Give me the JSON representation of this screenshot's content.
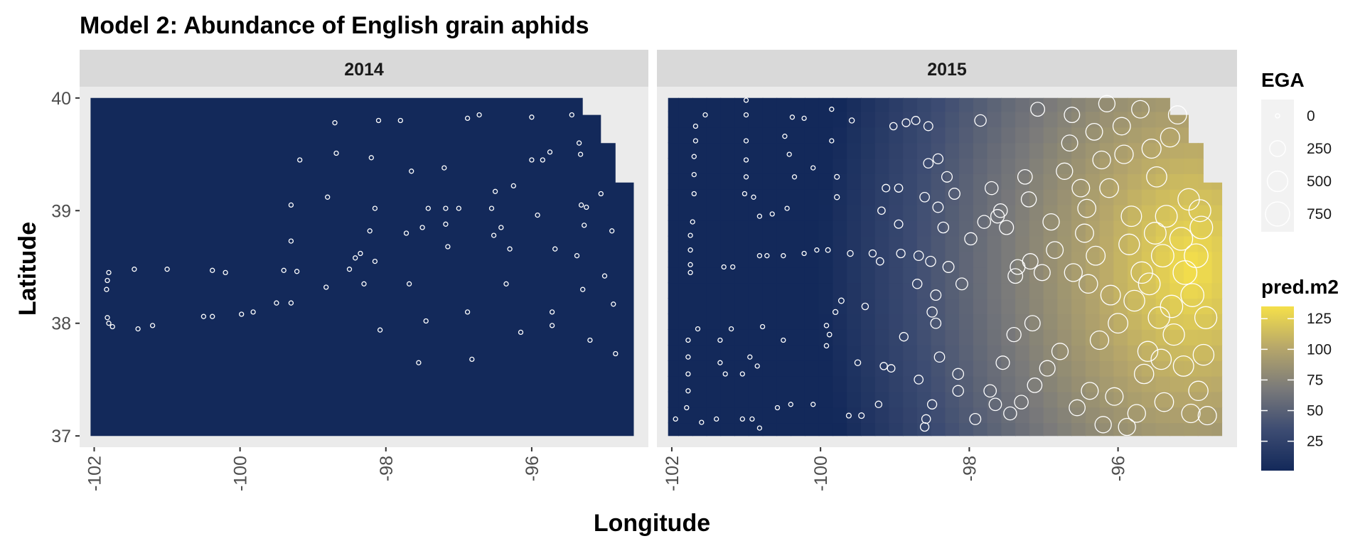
{
  "chart_data": {
    "type": "heatmap",
    "title": "Model 2: Abundance of English grain aphids",
    "xlabel": "Longitude",
    "ylabel": "Latitude",
    "facet_labels": [
      "2014",
      "2015"
    ],
    "xlim": [
      -102.2,
      -94.4
    ],
    "ylim": [
      36.9,
      40.1
    ],
    "x_ticks": [
      -102,
      -100,
      -98,
      -96
    ],
    "x_tick_labels": [
      "-102",
      "-100",
      "-98",
      "-96"
    ],
    "y_ticks": [
      37,
      38,
      39,
      40
    ],
    "y_tick_labels": [
      "37",
      "38",
      "39",
      "40"
    ],
    "grid": false,
    "legend_position": "right",
    "size_legend": {
      "title": "EGA",
      "breaks": [
        0,
        250,
        500,
        750
      ],
      "labels": [
        "0",
        "250",
        "500",
        "750"
      ]
    },
    "fill_legend": {
      "title": "pred.m2",
      "breaks": [
        25,
        50,
        75,
        100,
        125
      ],
      "labels": [
        "25",
        "50",
        "75",
        "100",
        "125"
      ],
      "range": [
        1,
        135
      ],
      "colors": [
        "#13295a",
        "#3d4c72",
        "#7a7a7a",
        "#b7a76a",
        "#f5e04a"
      ]
    },
    "colors": {
      "panel_background": "#ebebeb",
      "strip_background": "#d9d9d9",
      "low_fill": "#13295a",
      "point_stroke": "#ffffff"
    },
    "region_boundary": [
      [
        -102.05,
        37.0
      ],
      [
        -102.05,
        40.0
      ],
      [
        -95.3,
        40.0
      ],
      [
        -95.3,
        39.85
      ],
      [
        -95.05,
        39.85
      ],
      [
        -95.05,
        39.6
      ],
      [
        -94.85,
        39.6
      ],
      [
        -94.85,
        39.25
      ],
      [
        -94.6,
        39.25
      ],
      [
        -94.6,
        37.0
      ]
    ],
    "panels": [
      {
        "label": "2014",
        "prediction_surface": "uniform",
        "points": [
          [
            -101.8,
            38.45
          ],
          [
            -101.82,
            38.38
          ],
          [
            -101.83,
            38.3
          ],
          [
            -101.82,
            38.05
          ],
          [
            -101.8,
            38.0
          ],
          [
            -101.75,
            37.97
          ],
          [
            -101.45,
            38.48
          ],
          [
            -101.4,
            37.95
          ],
          [
            -101.2,
            37.98
          ],
          [
            -101.0,
            38.48
          ],
          [
            -100.5,
            38.06
          ],
          [
            -100.38,
            38.06
          ],
          [
            -100.38,
            38.47
          ],
          [
            -100.2,
            38.45
          ],
          [
            -99.98,
            38.08
          ],
          [
            -99.82,
            38.1
          ],
          [
            -99.5,
            38.18
          ],
          [
            -99.4,
            38.47
          ],
          [
            -99.3,
            38.18
          ],
          [
            -99.3,
            38.73
          ],
          [
            -99.3,
            39.05
          ],
          [
            -99.22,
            38.46
          ],
          [
            -99.18,
            39.45
          ],
          [
            -98.82,
            38.32
          ],
          [
            -98.8,
            39.12
          ],
          [
            -98.7,
            39.78
          ],
          [
            -98.68,
            39.51
          ],
          [
            -98.5,
            38.48
          ],
          [
            -98.42,
            38.58
          ],
          [
            -98.35,
            38.62
          ],
          [
            -98.3,
            38.35
          ],
          [
            -98.22,
            38.82
          ],
          [
            -98.2,
            39.47
          ],
          [
            -98.15,
            39.02
          ],
          [
            -98.15,
            38.55
          ],
          [
            -98.1,
            39.8
          ],
          [
            -98.08,
            37.94
          ],
          [
            -97.8,
            39.8
          ],
          [
            -97.72,
            38.8
          ],
          [
            -97.68,
            38.35
          ],
          [
            -97.65,
            39.35
          ],
          [
            -97.55,
            37.65
          ],
          [
            -97.5,
            38.85
          ],
          [
            -97.45,
            38.02
          ],
          [
            -97.42,
            39.02
          ],
          [
            -97.2,
            39.38
          ],
          [
            -97.18,
            38.88
          ],
          [
            -97.18,
            39.02
          ],
          [
            -97.15,
            38.68
          ],
          [
            -97.0,
            39.02
          ],
          [
            -96.88,
            39.82
          ],
          [
            -96.88,
            38.1
          ],
          [
            -96.82,
            37.68
          ],
          [
            -96.72,
            39.85
          ],
          [
            -96.55,
            39.02
          ],
          [
            -96.52,
            38.78
          ],
          [
            -96.5,
            39.17
          ],
          [
            -96.42,
            38.85
          ],
          [
            -96.35,
            38.35
          ],
          [
            -96.3,
            38.66
          ],
          [
            -96.25,
            39.22
          ],
          [
            -96.15,
            37.92
          ],
          [
            -96.0,
            39.83
          ],
          [
            -96.0,
            39.45
          ],
          [
            -95.92,
            38.96
          ],
          [
            -95.85,
            39.45
          ],
          [
            -95.75,
            39.52
          ],
          [
            -95.72,
            38.1
          ],
          [
            -95.72,
            37.98
          ],
          [
            -95.68,
            38.66
          ],
          [
            -95.45,
            39.85
          ],
          [
            -95.38,
            38.6
          ],
          [
            -95.35,
            39.6
          ],
          [
            -95.33,
            39.5
          ],
          [
            -95.32,
            39.05
          ],
          [
            -95.3,
            38.3
          ],
          [
            -95.28,
            38.87
          ],
          [
            -95.25,
            39.03
          ],
          [
            -95.2,
            37.85
          ],
          [
            -95.05,
            39.15
          ],
          [
            -95.0,
            38.42
          ],
          [
            -94.9,
            38.82
          ],
          [
            -94.88,
            38.17
          ],
          [
            -94.85,
            37.73
          ]
        ],
        "sizes": [
          0
        ]
      },
      {
        "label": "2015",
        "prediction_surface": "gradient rising to the east; maximum near (-95.0, 38.5)",
        "points": [
          [
            -101.95,
            37.15
          ],
          [
            -101.8,
            37.25
          ],
          [
            -101.78,
            37.4
          ],
          [
            -101.78,
            37.55
          ],
          [
            -101.78,
            37.7
          ],
          [
            -101.78,
            37.85
          ],
          [
            -101.75,
            38.45
          ],
          [
            -101.75,
            38.52
          ],
          [
            -101.75,
            38.65
          ],
          [
            -101.75,
            38.78
          ],
          [
            -101.72,
            38.9
          ],
          [
            -101.7,
            39.15
          ],
          [
            -101.7,
            39.32
          ],
          [
            -101.7,
            39.48
          ],
          [
            -101.68,
            39.62
          ],
          [
            -101.68,
            39.75
          ],
          [
            -101.65,
            37.95
          ],
          [
            -101.6,
            37.12
          ],
          [
            -101.55,
            39.85
          ],
          [
            -101.4,
            37.15
          ],
          [
            -101.35,
            37.65
          ],
          [
            -101.35,
            37.85
          ],
          [
            -101.3,
            38.5
          ],
          [
            -101.28,
            37.55
          ],
          [
            -101.2,
            37.95
          ],
          [
            -101.18,
            38.5
          ],
          [
            -101.05,
            37.15
          ],
          [
            -101.05,
            37.55
          ],
          [
            -101.02,
            39.15
          ],
          [
            -101.0,
            39.3
          ],
          [
            -101.0,
            39.45
          ],
          [
            -101.0,
            39.62
          ],
          [
            -101.0,
            39.85
          ],
          [
            -101.0,
            39.98
          ],
          [
            -100.95,
            37.7
          ],
          [
            -100.92,
            37.15
          ],
          [
            -100.9,
            39.12
          ],
          [
            -100.85,
            37.62
          ],
          [
            -100.82,
            38.95
          ],
          [
            -100.82,
            38.6
          ],
          [
            -100.82,
            37.07
          ],
          [
            -100.78,
            37.97
          ],
          [
            -100.72,
            38.6
          ],
          [
            -100.65,
            38.97
          ],
          [
            -100.58,
            37.25
          ],
          [
            -100.5,
            37.85
          ],
          [
            -100.5,
            38.6
          ],
          [
            -100.48,
            39.66
          ],
          [
            -100.45,
            39.02
          ],
          [
            -100.42,
            39.5
          ],
          [
            -100.4,
            37.28
          ],
          [
            -100.38,
            39.83
          ],
          [
            -100.35,
            39.3
          ],
          [
            -100.22,
            39.82
          ],
          [
            -100.22,
            38.62
          ],
          [
            -100.1,
            39.38
          ],
          [
            -100.1,
            37.28
          ],
          [
            -100.05,
            38.65
          ],
          [
            -99.92,
            37.8
          ],
          [
            -99.92,
            37.98
          ],
          [
            -99.9,
            38.65
          ],
          [
            -99.88,
            37.9
          ],
          [
            -99.85,
            39.9
          ],
          [
            -99.85,
            39.62
          ],
          [
            -99.8,
            38.1
          ],
          [
            -99.78,
            39.3
          ],
          [
            -99.78,
            39.12
          ],
          [
            -99.72,
            38.2
          ],
          [
            -99.62,
            37.18
          ],
          [
            -99.6,
            38.62
          ],
          [
            -99.58,
            39.8
          ],
          [
            -99.5,
            37.65
          ],
          [
            -99.45,
            37.18
          ],
          [
            -99.4,
            38.15
          ],
          [
            -99.3,
            38.62
          ],
          [
            -99.22,
            37.28
          ],
          [
            -99.2,
            38.55
          ],
          [
            -99.18,
            39.0
          ],
          [
            -99.15,
            37.62
          ],
          [
            -99.12,
            39.2
          ],
          [
            -99.05,
            37.6
          ],
          [
            -99.02,
            39.75
          ],
          [
            -98.95,
            39.2
          ],
          [
            -98.95,
            38.88
          ],
          [
            -98.92,
            38.62
          ],
          [
            -98.88,
            37.88
          ],
          [
            -98.85,
            39.78
          ],
          [
            -98.72,
            39.8
          ],
          [
            -98.7,
            38.35
          ],
          [
            -98.68,
            38.6
          ],
          [
            -98.68,
            37.5
          ],
          [
            -98.6,
            39.12
          ],
          [
            -98.6,
            37.08
          ],
          [
            -98.58,
            37.15
          ],
          [
            -98.55,
            39.42
          ],
          [
            -98.55,
            39.75
          ],
          [
            -98.52,
            38.55
          ],
          [
            -98.5,
            38.1
          ],
          [
            -98.5,
            37.28
          ],
          [
            -98.45,
            38.0
          ],
          [
            -98.45,
            38.25
          ],
          [
            -98.42,
            39.03
          ],
          [
            -98.42,
            39.46
          ],
          [
            -98.4,
            37.7
          ],
          [
            -98.35,
            38.85
          ],
          [
            -98.3,
            39.3
          ],
          [
            -98.28,
            38.5
          ],
          [
            -98.2,
            39.15
          ],
          [
            -98.15,
            37.55
          ],
          [
            -98.15,
            37.4
          ],
          [
            -98.1,
            38.35
          ],
          [
            -97.98,
            38.75
          ],
          [
            -97.92,
            37.15
          ],
          [
            -97.85,
            39.8
          ],
          [
            -97.8,
            38.9
          ],
          [
            -97.72,
            37.4
          ],
          [
            -97.7,
            39.2
          ],
          [
            -97.65,
            37.28
          ],
          [
            -97.62,
            38.95
          ],
          [
            -97.58,
            39.0
          ],
          [
            -97.55,
            37.65
          ],
          [
            -97.5,
            38.85
          ],
          [
            -97.45,
            37.2
          ],
          [
            -97.4,
            37.9
          ],
          [
            -97.38,
            38.42
          ],
          [
            -97.35,
            38.5
          ],
          [
            -97.3,
            37.3
          ],
          [
            -97.25,
            39.3
          ],
          [
            -97.2,
            39.1
          ],
          [
            -97.18,
            38.55
          ],
          [
            -97.15,
            38.0
          ],
          [
            -97.12,
            37.45
          ],
          [
            -97.08,
            39.9
          ],
          [
            -97.02,
            38.45
          ],
          [
            -96.95,
            37.6
          ],
          [
            -96.9,
            38.9
          ],
          [
            -96.85,
            38.65
          ],
          [
            -96.78,
            37.75
          ],
          [
            -96.72,
            39.35
          ],
          [
            -96.65,
            39.6
          ],
          [
            -96.62,
            39.85
          ],
          [
            -96.6,
            38.45
          ],
          [
            -96.55,
            37.25
          ],
          [
            -96.5,
            39.2
          ],
          [
            -96.45,
            38.8
          ],
          [
            -96.42,
            39.02
          ],
          [
            -96.4,
            38.35
          ],
          [
            -96.38,
            37.4
          ],
          [
            -96.32,
            39.7
          ],
          [
            -96.3,
            38.6
          ],
          [
            -96.25,
            37.85
          ],
          [
            -96.22,
            39.45
          ],
          [
            -96.2,
            37.1
          ],
          [
            -96.15,
            39.95
          ],
          [
            -96.12,
            39.2
          ],
          [
            -96.1,
            38.25
          ],
          [
            -96.05,
            37.35
          ],
          [
            -96.0,
            38.0
          ],
          [
            -95.95,
            39.75
          ],
          [
            -95.92,
            39.5
          ],
          [
            -95.88,
            37.08
          ],
          [
            -95.85,
            38.7
          ],
          [
            -95.82,
            38.95
          ],
          [
            -95.78,
            38.2
          ],
          [
            -95.75,
            37.2
          ],
          [
            -95.7,
            39.9
          ],
          [
            -95.68,
            38.45
          ],
          [
            -95.65,
            37.55
          ],
          [
            -95.6,
            37.75
          ],
          [
            -95.58,
            38.35
          ],
          [
            -95.55,
            39.55
          ],
          [
            -95.5,
            38.8
          ],
          [
            -95.48,
            39.3
          ],
          [
            -95.45,
            38.05
          ],
          [
            -95.42,
            37.68
          ],
          [
            -95.4,
            38.6
          ],
          [
            -95.38,
            37.3
          ],
          [
            -95.35,
            38.95
          ],
          [
            -95.3,
            39.65
          ],
          [
            -95.28,
            38.15
          ],
          [
            -95.25,
            37.9
          ],
          [
            -95.2,
            39.85
          ],
          [
            -95.15,
            38.75
          ],
          [
            -95.12,
            37.62
          ],
          [
            -95.1,
            38.45
          ],
          [
            -95.05,
            39.1
          ],
          [
            -95.02,
            37.2
          ],
          [
            -95.0,
            38.25
          ],
          [
            -94.95,
            38.6
          ],
          [
            -94.92,
            37.4
          ],
          [
            -94.9,
            39.0
          ],
          [
            -94.88,
            38.85
          ],
          [
            -94.85,
            37.72
          ],
          [
            -94.82,
            38.05
          ],
          [
            -94.8,
            37.18
          ]
        ],
        "sizes": [
          750
        ]
      }
    ]
  }
}
